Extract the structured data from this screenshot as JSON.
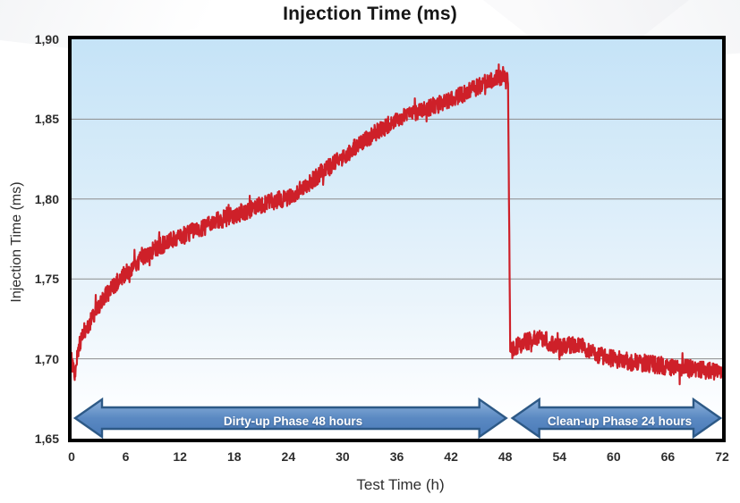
{
  "title": "Injection Time (ms)",
  "y_axis_title": "Injection Time (ms)",
  "x_axis_title": "Test Time (h)",
  "phases": {
    "dirty_label": "Dirty-up Phase 48 hours",
    "clean_label": "Clean-up Phase 24 hours"
  },
  "colors": {
    "line": "#ce2029",
    "gridline": "#8c8c8c",
    "plot_border": "#000000",
    "plot_bg_top": "#c5e3f7",
    "plot_bg_bottom": "#ffffff",
    "arrow_fill_top": "#8fb2dc",
    "arrow_fill_mid": "#5a89c2",
    "arrow_fill_bottom": "#4a7ab8",
    "arrow_border": "#2d5986",
    "title_text": "#161616"
  },
  "chart_data": {
    "type": "line",
    "title": "Injection Time (ms)",
    "xlabel": "Test Time (h)",
    "ylabel": "Injection Time (ms)",
    "xlim": [
      0,
      72
    ],
    "ylim": [
      1.65,
      1.9
    ],
    "x_ticks": [
      "0",
      "6",
      "12",
      "18",
      "24",
      "30",
      "36",
      "42",
      "48",
      "54",
      "60",
      "66",
      "72"
    ],
    "x_tick_values": [
      0,
      6,
      12,
      18,
      24,
      30,
      36,
      42,
      48,
      54,
      60,
      66,
      72
    ],
    "y_ticks": [
      "1,90",
      "1,85",
      "1,80",
      "1,75",
      "1,70",
      "1,65"
    ],
    "y_tick_values": [
      1.9,
      1.85,
      1.8,
      1.75,
      1.7,
      1.65
    ],
    "grid_values": [
      1.85,
      1.8,
      1.75,
      1.7
    ],
    "decimal_separator": ",",
    "series_name": "Injection Time",
    "trend_points": [
      [
        0,
        1.701
      ],
      [
        0.3,
        1.689
      ],
      [
        0.7,
        1.705
      ],
      [
        1.2,
        1.716
      ],
      [
        2,
        1.723
      ],
      [
        3,
        1.733
      ],
      [
        4,
        1.741
      ],
      [
        5,
        1.748
      ],
      [
        6,
        1.754
      ],
      [
        7,
        1.759
      ],
      [
        8,
        1.764
      ],
      [
        9,
        1.768
      ],
      [
        10,
        1.771
      ],
      [
        11,
        1.774
      ],
      [
        12,
        1.776
      ],
      [
        14,
        1.781
      ],
      [
        16,
        1.786
      ],
      [
        18,
        1.79
      ],
      [
        20,
        1.794
      ],
      [
        22,
        1.798
      ],
      [
        24,
        1.801
      ],
      [
        26,
        1.809
      ],
      [
        28,
        1.818
      ],
      [
        30,
        1.826
      ],
      [
        32,
        1.835
      ],
      [
        34,
        1.843
      ],
      [
        36,
        1.849
      ],
      [
        38,
        1.854
      ],
      [
        40,
        1.858
      ],
      [
        42,
        1.862
      ],
      [
        44,
        1.868
      ],
      [
        46,
        1.873
      ],
      [
        47.5,
        1.877
      ],
      [
        48.3,
        1.878
      ],
      [
        48.55,
        1.704
      ],
      [
        49,
        1.707
      ],
      [
        50,
        1.71
      ],
      [
        51,
        1.712
      ],
      [
        52,
        1.713
      ],
      [
        53,
        1.71
      ],
      [
        54,
        1.707
      ],
      [
        55,
        1.708
      ],
      [
        56,
        1.71
      ],
      [
        57,
        1.706
      ],
      [
        58,
        1.703
      ],
      [
        59,
        1.701
      ],
      [
        60,
        1.7
      ],
      [
        62,
        1.698
      ],
      [
        64,
        1.697
      ],
      [
        66,
        1.695
      ],
      [
        68,
        1.694
      ],
      [
        70,
        1.693
      ],
      [
        72,
        1.691
      ]
    ],
    "noise_amplitude": 0.0055,
    "drop_region": [
      48.3,
      48.6
    ],
    "annotations": [
      {
        "label": "Dirty-up Phase 48 hours",
        "x_start": 0,
        "x_end": 48
      },
      {
        "label": "Clean-up Phase 24 hours",
        "x_start": 48,
        "x_end": 72
      }
    ]
  }
}
